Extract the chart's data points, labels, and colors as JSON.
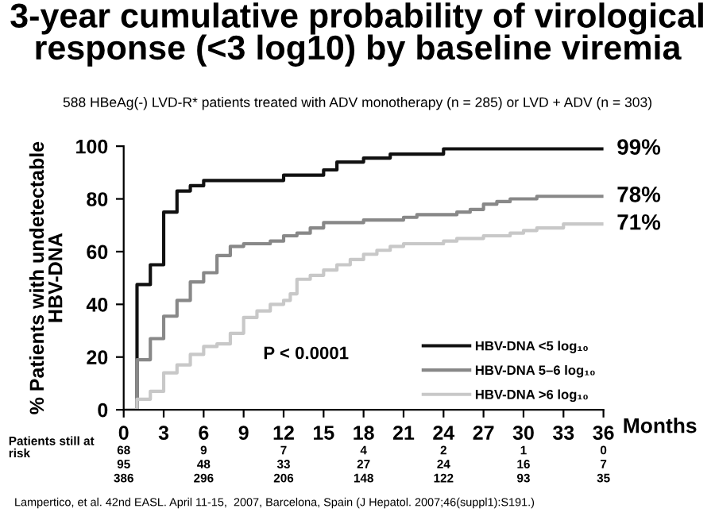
{
  "chart_data": {
    "type": "step",
    "title": "3-year cumulative probability of virological\nresponse (<3 log10) by baseline viremia",
    "subtitle": "588 HBeAg(-) LVD-R* patients treated with ADV monotherapy (n = 285) or LVD + ADV (n = 303)",
    "xlabel": "Months",
    "ylabel": "% Patients with undetectable\nHBV-DNA",
    "xlim": [
      0,
      36
    ],
    "xticks": [
      0,
      3,
      6,
      9,
      12,
      15,
      18,
      21,
      24,
      27,
      30,
      33,
      36
    ],
    "ylim": [
      0,
      100
    ],
    "yticks": [
      0,
      20,
      40,
      60,
      80,
      100
    ],
    "grid": false,
    "legend": "bottom right",
    "marker": "none",
    "line_style": "solid",
    "series": [
      {
        "name": "HBV-DNA <5 log₁₀",
        "color": "#111111",
        "x": [
          0,
          1,
          2,
          3,
          4,
          5,
          6,
          12,
          15,
          16,
          18,
          20,
          24,
          36
        ],
        "values": [
          0,
          47.5,
          55,
          75,
          83,
          85,
          87,
          89,
          91,
          94,
          95.5,
          97,
          99,
          99
        ]
      },
      {
        "name": "HBV-DNA 5–6 log₁₀",
        "color": "#888888",
        "x": [
          0,
          1,
          2,
          3,
          4,
          5,
          6,
          7,
          8,
          9,
          11,
          12,
          13,
          14,
          15,
          18,
          21,
          22,
          25,
          26,
          27,
          28,
          29,
          31,
          36
        ],
        "values": [
          0,
          19,
          27,
          35.5,
          41.5,
          48.5,
          52,
          58.5,
          62,
          63,
          64,
          66,
          67,
          69,
          71,
          72,
          73,
          74,
          75,
          76,
          78,
          79,
          80,
          81,
          81
        ]
      },
      {
        "name": "HBV-DNA >6 log₁₀",
        "color": "#c8c8c8",
        "x": [
          0,
          1,
          2,
          3,
          4,
          5,
          6,
          7,
          8,
          9,
          10,
          11,
          12,
          12.5,
          13,
          14,
          15,
          16,
          17,
          18,
          19,
          20,
          21,
          24,
          25,
          27,
          29,
          30,
          31,
          33,
          36
        ],
        "values": [
          0,
          4,
          7,
          14,
          17,
          21,
          24,
          25,
          29,
          35,
          37.5,
          40,
          41.5,
          44,
          49.5,
          51,
          53,
          55,
          57,
          59,
          60.5,
          62,
          63,
          64,
          65,
          66,
          67,
          68,
          69,
          70.5,
          70.5
        ]
      }
    ],
    "annotations": [
      "99%",
      "78%",
      "71%",
      "P < 0.0001",
      "Patients still at\nrisk",
      "68 9 7 4 2 1 0",
      "95 48 33 27 24 16 7",
      "386 296 206 148 122 93 35",
      "Lampertico, et al. 42nd EASL. April 11-15,  2007, Barcelona, Spain (J Hepatol. 2007;46(suppl1):S191.)"
    ]
  }
}
